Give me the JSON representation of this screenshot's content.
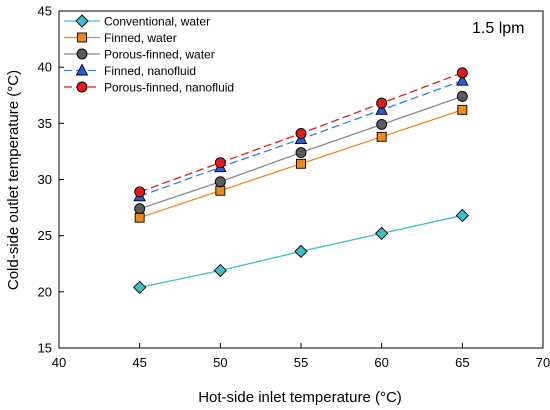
{
  "chart_data": {
    "type": "line",
    "xlabel": "Hot-side inlet temperature (°C)",
    "ylabel": "Cold-side outlet temperature (°C)",
    "xlim": [
      40,
      70
    ],
    "ylim": [
      15,
      45
    ],
    "xticks": [
      40,
      45,
      50,
      55,
      60,
      65,
      70
    ],
    "yticks": [
      15,
      20,
      25,
      30,
      35,
      40,
      45
    ],
    "grid": false,
    "legend_position": "top-left",
    "annotation": "1.5 lpm",
    "x": [
      45,
      50,
      55,
      60,
      65
    ],
    "series": [
      {
        "name": "Conventional, water",
        "values": [
          20.4,
          21.9,
          23.6,
          25.2,
          26.8
        ],
        "color": "#3cc0c8",
        "marker": "diamond",
        "marker_fill": "#3cc0c8",
        "dash": "solid"
      },
      {
        "name": "Finned, water",
        "values": [
          26.6,
          29.0,
          31.4,
          33.8,
          36.2
        ],
        "color": "#f0891a",
        "marker": "square",
        "marker_fill": "#f0891a",
        "dash": "solid"
      },
      {
        "name": "Porous-finned, water",
        "values": [
          27.4,
          29.8,
          32.4,
          34.9,
          37.4
        ],
        "color": "#8a8a8a",
        "marker": "circle",
        "marker_fill": "#5a5a5a",
        "dash": "solid"
      },
      {
        "name": "Finned, nanofluid",
        "values": [
          28.5,
          31.1,
          33.6,
          36.2,
          38.8
        ],
        "color": "#2f80e0",
        "marker": "triangle",
        "marker_fill": "#2a5bd7",
        "dash": "dashed"
      },
      {
        "name": "Porous-finned, nanofluid",
        "values": [
          28.9,
          31.5,
          34.1,
          36.8,
          39.5
        ],
        "color": "#e31a1c",
        "marker": "circle",
        "marker_fill": "#e31a1c",
        "dash": "dashed"
      }
    ]
  }
}
